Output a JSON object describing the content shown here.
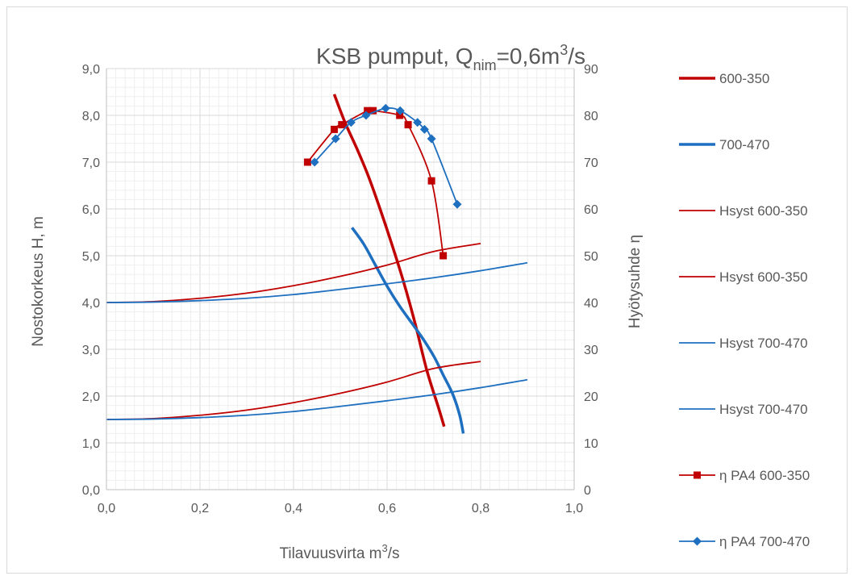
{
  "chart_data": {
    "type": "line",
    "title": {
      "main": "KSB pumput, Q",
      "sub": "nim",
      "eq": "=0,6m",
      "sup": "3",
      "tail": "/s"
    },
    "xlabel": {
      "text": "Tilavuusvirta m",
      "sup": "3",
      "tail": "/s"
    },
    "ylabel": "Nostokorkeus H, m",
    "y2label": "Hyötysuhde η",
    "xlim": [
      0,
      1
    ],
    "ylim": [
      0,
      9
    ],
    "y2lim": [
      0,
      90
    ],
    "x_ticks": [
      "0,0",
      "0,2",
      "0,4",
      "0,6",
      "0,8",
      "1,0"
    ],
    "y_ticks": [
      "0,0",
      "1,0",
      "2,0",
      "3,0",
      "4,0",
      "5,0",
      "6,0",
      "7,0",
      "8,0",
      "9,0"
    ],
    "y2_ticks": [
      "0",
      "10",
      "20",
      "30",
      "40",
      "50",
      "60",
      "70",
      "80",
      "90"
    ],
    "grid": true,
    "legend_position": "right",
    "series": [
      {
        "name": "600-350",
        "axis": "left",
        "color": "#c00000",
        "width": 3.5,
        "marker": "none",
        "x": [
          0.487,
          0.51,
          0.535,
          0.56,
          0.585,
          0.61,
          0.635,
          0.66,
          0.685,
          0.71,
          0.722
        ],
        "y": [
          8.45,
          7.85,
          7.3,
          6.7,
          6.0,
          5.25,
          4.45,
          3.55,
          2.55,
          1.75,
          1.35
        ]
      },
      {
        "name": "700-470",
        "axis": "left",
        "color": "#1e6fbf",
        "width": 3.5,
        "marker": "none",
        "x": [
          0.525,
          0.55,
          0.575,
          0.6,
          0.625,
          0.65,
          0.675,
          0.7,
          0.72,
          0.74,
          0.755,
          0.763
        ],
        "y": [
          5.6,
          5.25,
          4.8,
          4.35,
          3.95,
          3.6,
          3.25,
          2.85,
          2.45,
          2.05,
          1.6,
          1.2
        ]
      },
      {
        "name": "Hsyst 600-350",
        "axis": "left",
        "color": "#c00000",
        "width": 1.8,
        "marker": "none",
        "x": [
          0,
          0.1,
          0.2,
          0.3,
          0.4,
          0.5,
          0.6,
          0.7,
          0.8
        ],
        "y": [
          4.0,
          4.02,
          4.09,
          4.2,
          4.36,
          4.56,
          4.8,
          5.09,
          5.26
        ]
      },
      {
        "name": "Hsyst 600-350",
        "axis": "left",
        "color": "#c00000",
        "width": 1.8,
        "marker": "none",
        "x": [
          0,
          0.1,
          0.2,
          0.3,
          0.4,
          0.5,
          0.6,
          0.7,
          0.8
        ],
        "y": [
          1.5,
          1.52,
          1.59,
          1.7,
          1.86,
          2.06,
          2.3,
          2.59,
          2.74
        ]
      },
      {
        "name": "Hsyst 700-470",
        "axis": "left",
        "color": "#1e6fbf",
        "width": 1.8,
        "marker": "none",
        "x": [
          0,
          0.1,
          0.2,
          0.3,
          0.4,
          0.5,
          0.6,
          0.7,
          0.8,
          0.9
        ],
        "y": [
          4.0,
          4.01,
          4.04,
          4.09,
          4.17,
          4.28,
          4.4,
          4.53,
          4.68,
          4.85
        ]
      },
      {
        "name": "Hsyst 700-470",
        "axis": "left",
        "color": "#1e6fbf",
        "width": 1.8,
        "marker": "none",
        "x": [
          0,
          0.1,
          0.2,
          0.3,
          0.4,
          0.5,
          0.6,
          0.7,
          0.8,
          0.9
        ],
        "y": [
          1.5,
          1.51,
          1.54,
          1.59,
          1.67,
          1.78,
          1.9,
          2.03,
          2.18,
          2.35
        ]
      },
      {
        "name": "η PA4 600-350",
        "axis": "right",
        "color": "#c00000",
        "width": 1.8,
        "marker": "square",
        "x": [
          0.43,
          0.487,
          0.503,
          0.558,
          0.57,
          0.627,
          0.645,
          0.695,
          0.72
        ],
        "y": [
          70,
          77,
          78,
          81,
          81,
          80,
          78,
          66,
          50
        ]
      },
      {
        "name": "η PA4 700-470",
        "axis": "right",
        "color": "#1e6fbf",
        "width": 1.8,
        "marker": "diamond",
        "x": [
          0.445,
          0.49,
          0.523,
          0.555,
          0.597,
          0.628,
          0.665,
          0.68,
          0.695,
          0.75
        ],
        "y": [
          70,
          75,
          78.5,
          80,
          81.5,
          81,
          78.5,
          77,
          75,
          61
        ]
      }
    ]
  }
}
